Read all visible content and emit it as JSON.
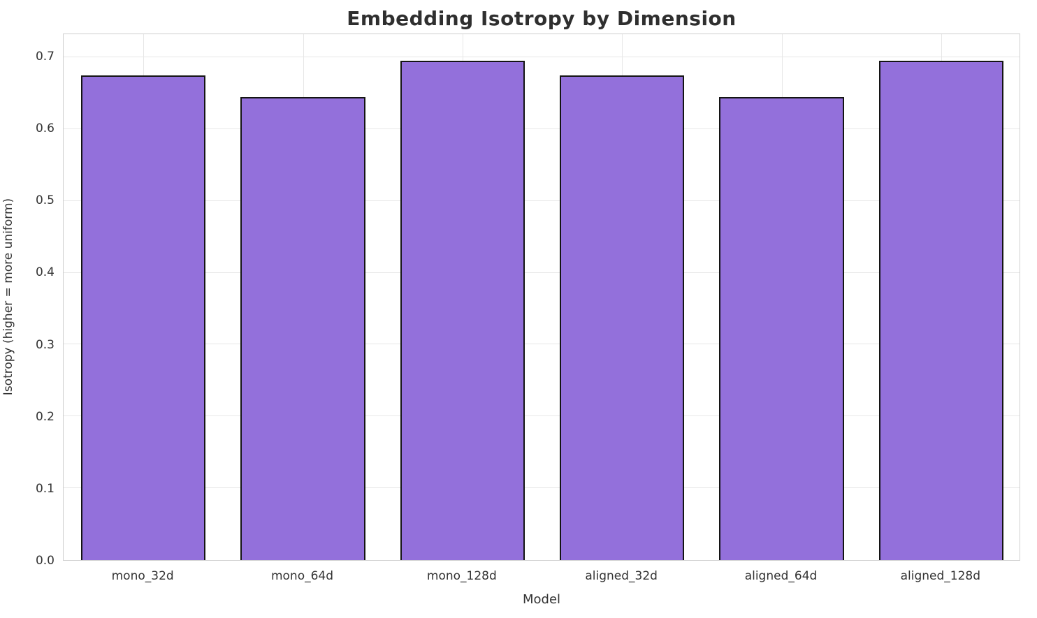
{
  "chart_data": {
    "type": "bar",
    "title": "Embedding Isotropy by Dimension",
    "xlabel": "Model",
    "ylabel": "Isotropy (higher = more uniform)",
    "categories": [
      "mono_32d",
      "mono_64d",
      "mono_128d",
      "aligned_32d",
      "aligned_64d",
      "aligned_128d"
    ],
    "values": [
      0.675,
      0.645,
      0.695,
      0.675,
      0.645,
      0.695
    ],
    "ylim": [
      0,
      0.732
    ],
    "yticks": [
      0.0,
      0.1,
      0.2,
      0.3,
      0.4,
      0.5,
      0.6,
      0.7
    ],
    "ytick_labels": [
      "0.0",
      "0.1",
      "0.2",
      "0.3",
      "0.4",
      "0.5",
      "0.6",
      "0.7"
    ],
    "grid": true,
    "legend": "none",
    "bar_color": "#9370DB",
    "bar_edge_color": "#141414",
    "bar_width_fraction": 0.78
  }
}
